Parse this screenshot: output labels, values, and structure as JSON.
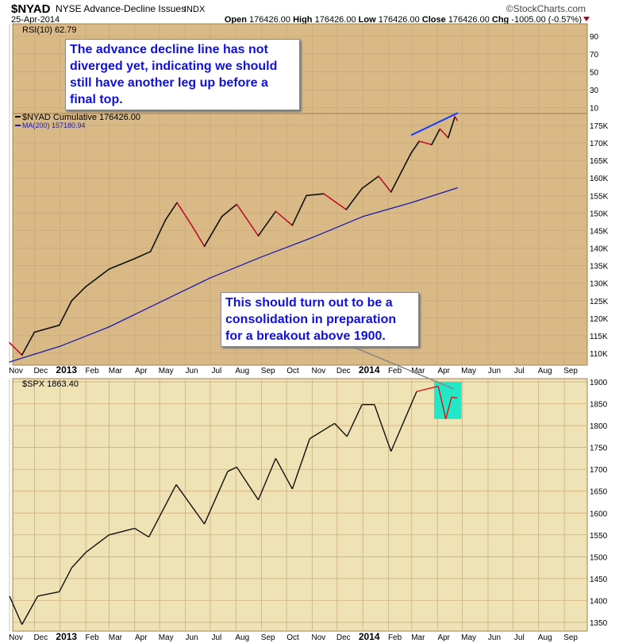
{
  "header": {
    "symbol": "$NYAD",
    "name": "NYSE Advance-Decline Issues",
    "exchange": "INDX",
    "date": "25-Apr-2014",
    "brand": "©StockCharts.com",
    "open_label": "Open",
    "open": "176426.00",
    "high_label": "High",
    "high": "176426.00",
    "low_label": "Low",
    "low": "176426.00",
    "close_label": "Close",
    "close": "176426.00",
    "chg_label": "Chg",
    "chg": "-1005.00 (-0.57%)",
    "chg_icon": "down-triangle-icon",
    "chg_color": "#b00020"
  },
  "annotations": {
    "top": "The advance decline line has not diverged yet, indicating we should still have another leg up before a final top.",
    "bottom": "This should turn out to be a consolidation in preparation for a breakout above 1900."
  },
  "colors": {
    "panel_bg": "#d9b986",
    "spx_bg": "#efe2b4",
    "ma": "#1a1ab0",
    "trend": "#1a3cff",
    "highlight": "#22e8c8",
    "down": "#c0102a"
  },
  "chart_data": [
    {
      "type": "line",
      "panel": "RSI",
      "legend": "RSI(10) 62.79",
      "yticks": [
        "90",
        "70",
        "50",
        "30",
        "10"
      ],
      "ylim": [
        0,
        100
      ],
      "grid": true
    },
    {
      "type": "line",
      "panel": "NYAD",
      "legend": "$NYAD Cumulative 176426.00",
      "ma_legend": "MA(200) 157180.94",
      "yticks": [
        "175K",
        "170K",
        "165K",
        "160K",
        "155K",
        "150K",
        "145K",
        "140K",
        "135K",
        "130K",
        "125K",
        "120K",
        "115K",
        "110K"
      ],
      "ylim": [
        107000,
        178500
      ],
      "grid": true,
      "series": [
        {
          "name": "$NYAD Cumulative",
          "points": [
            [
              "2012-11-01",
              113000
            ],
            [
              "2012-11-16",
              109500
            ],
            [
              "2012-12-01",
              116000
            ],
            [
              "2012-12-31",
              118000
            ],
            [
              "2013-01-15",
              125000
            ],
            [
              "2013-02-01",
              129000
            ],
            [
              "2013-03-01",
              134000
            ],
            [
              "2013-04-01",
              137000
            ],
            [
              "2013-04-20",
              139000
            ],
            [
              "2013-05-08",
              148000
            ],
            [
              "2013-05-22",
              153000
            ],
            [
              "2013-06-10",
              146000
            ],
            [
              "2013-06-24",
              140500
            ],
            [
              "2013-07-15",
              149000
            ],
            [
              "2013-08-02",
              152500
            ],
            [
              "2013-08-28",
              143500
            ],
            [
              "2013-09-18",
              150500
            ],
            [
              "2013-10-08",
              146500
            ],
            [
              "2013-10-25",
              155000
            ],
            [
              "2013-11-15",
              155500
            ],
            [
              "2013-12-12",
              151000
            ],
            [
              "2013-12-31",
              157000
            ],
            [
              "2014-01-20",
              160500
            ],
            [
              "2014-02-04",
              156000
            ],
            [
              "2014-02-28",
              167000
            ],
            [
              "2014-03-10",
              170500
            ],
            [
              "2014-03-25",
              169500
            ],
            [
              "2014-04-04",
              174000
            ],
            [
              "2014-04-14",
              171500
            ],
            [
              "2014-04-22",
              177500
            ],
            [
              "2014-04-25",
              176426
            ]
          ]
        },
        {
          "name": "MA(200)",
          "points": [
            [
              "2012-11-01",
              107500
            ],
            [
              "2013-01-01",
              112000
            ],
            [
              "2013-03-01",
              117500
            ],
            [
              "2013-05-01",
              124500
            ],
            [
              "2013-07-01",
              131500
            ],
            [
              "2013-09-01",
              137500
            ],
            [
              "2013-11-01",
              143000
            ],
            [
              "2014-01-01",
              149000
            ],
            [
              "2014-03-01",
              153000
            ],
            [
              "2014-04-25",
              157181
            ]
          ]
        },
        {
          "name": "trendline",
          "points": [
            [
              "2014-03-01",
              172300
            ],
            [
              "2014-04-25",
              178500
            ]
          ]
        }
      ]
    },
    {
      "type": "line",
      "panel": "SPX",
      "legend": "$SPX 1863.40",
      "yticks": [
        "1900",
        "1850",
        "1800",
        "1750",
        "1700",
        "1650",
        "1600",
        "1550",
        "1500",
        "1450",
        "1400",
        "1350"
      ],
      "ylim": [
        1325,
        1905
      ],
      "grid": true,
      "series": [
        {
          "name": "$SPX",
          "points": [
            [
              "2012-11-01",
              1410
            ],
            [
              "2012-11-16",
              1345
            ],
            [
              "2012-12-05",
              1410
            ],
            [
              "2012-12-31",
              1420
            ],
            [
              "2013-01-15",
              1475
            ],
            [
              "2013-02-01",
              1510
            ],
            [
              "2013-03-01",
              1550
            ],
            [
              "2013-04-01",
              1565
            ],
            [
              "2013-04-18",
              1545
            ],
            [
              "2013-05-21",
              1665
            ],
            [
              "2013-06-24",
              1575
            ],
            [
              "2013-07-22",
              1695
            ],
            [
              "2013-08-02",
              1705
            ],
            [
              "2013-08-28",
              1630
            ],
            [
              "2013-09-18",
              1725
            ],
            [
              "2013-10-08",
              1655
            ],
            [
              "2013-10-29",
              1770
            ],
            [
              "2013-11-28",
              1805
            ],
            [
              "2013-12-13",
              1775
            ],
            [
              "2013-12-31",
              1848
            ],
            [
              "2014-01-15",
              1848
            ],
            [
              "2014-02-04",
              1741
            ],
            [
              "2014-03-07",
              1878
            ],
            [
              "2014-04-02",
              1890
            ],
            [
              "2014-04-11",
              1815
            ],
            [
              "2014-04-18",
              1865
            ],
            [
              "2014-04-25",
              1863
            ]
          ]
        }
      ],
      "highlight": {
        "from": "2014-03-28",
        "to": "2014-04-30",
        "range": [
          1815,
          1900
        ]
      }
    },
    {
      "type": "axis",
      "xticks": [
        "Nov",
        "Dec",
        "2013",
        "Feb",
        "Mar",
        "Apr",
        "May",
        "Jun",
        "Jul",
        "Aug",
        "Sep",
        "Oct",
        "Nov",
        "Dec",
        "2014",
        "Feb",
        "Mar",
        "Apr",
        "May",
        "Jun",
        "Jul",
        "Aug",
        "Sep"
      ],
      "xtick_dates": [
        "2012-11-01",
        "2012-12-01",
        "2013-01-01",
        "2013-02-01",
        "2013-03-01",
        "2013-04-01",
        "2013-05-01",
        "2013-06-01",
        "2013-07-01",
        "2013-08-01",
        "2013-09-01",
        "2013-10-01",
        "2013-11-01",
        "2013-12-01",
        "2014-01-01",
        "2014-02-01",
        "2014-03-01",
        "2014-04-01",
        "2014-05-01",
        "2014-06-01",
        "2014-07-01",
        "2014-08-01",
        "2014-09-01"
      ]
    }
  ]
}
